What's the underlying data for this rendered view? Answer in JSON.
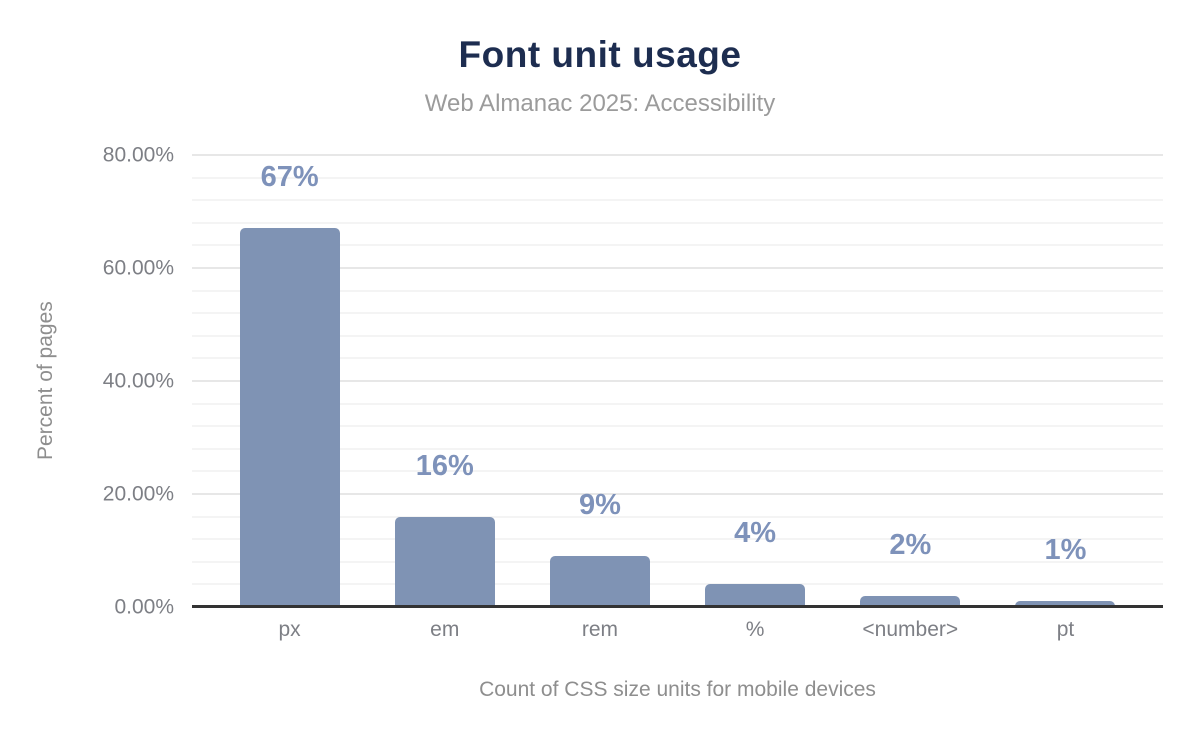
{
  "chart_data": {
    "type": "bar",
    "title": "Font unit usage",
    "subtitle": "Web Almanac 2025: Accessibility",
    "categories": [
      "px",
      "em",
      "rem",
      "%",
      "<number>",
      "pt"
    ],
    "values": [
      67,
      16,
      9,
      4,
      2,
      1
    ],
    "value_labels": [
      "67%",
      "16%",
      "9%",
      "4%",
      "2%",
      "1%"
    ],
    "xlabel": "Count of CSS size units for mobile devices",
    "ylabel": "Percent of pages",
    "ylim": [
      0,
      80
    ],
    "y_ticks": [
      {
        "value": 0,
        "label": "0.00%"
      },
      {
        "value": 20,
        "label": "20.00%"
      },
      {
        "value": 40,
        "label": "40.00%"
      },
      {
        "value": 60,
        "label": "60.00%"
      },
      {
        "value": 80,
        "label": "80.00%"
      }
    ],
    "grid": {
      "minor_step": 4,
      "major_step": 20,
      "grid_on": true
    },
    "legend": "none"
  },
  "style": {
    "background": "#ffffff",
    "title_color": "#1d2d50",
    "subtitle_color": "#9b9b9b",
    "bar_color": "#7f93b4",
    "value_label_color": "#7e92ba",
    "tick_color": "#7d7f85",
    "axis_title_color": "#8e8e8e",
    "axis_line_color": "#333333",
    "grid_major_color": "#e7e7e7",
    "grid_minor_color": "#f4f4f4"
  }
}
